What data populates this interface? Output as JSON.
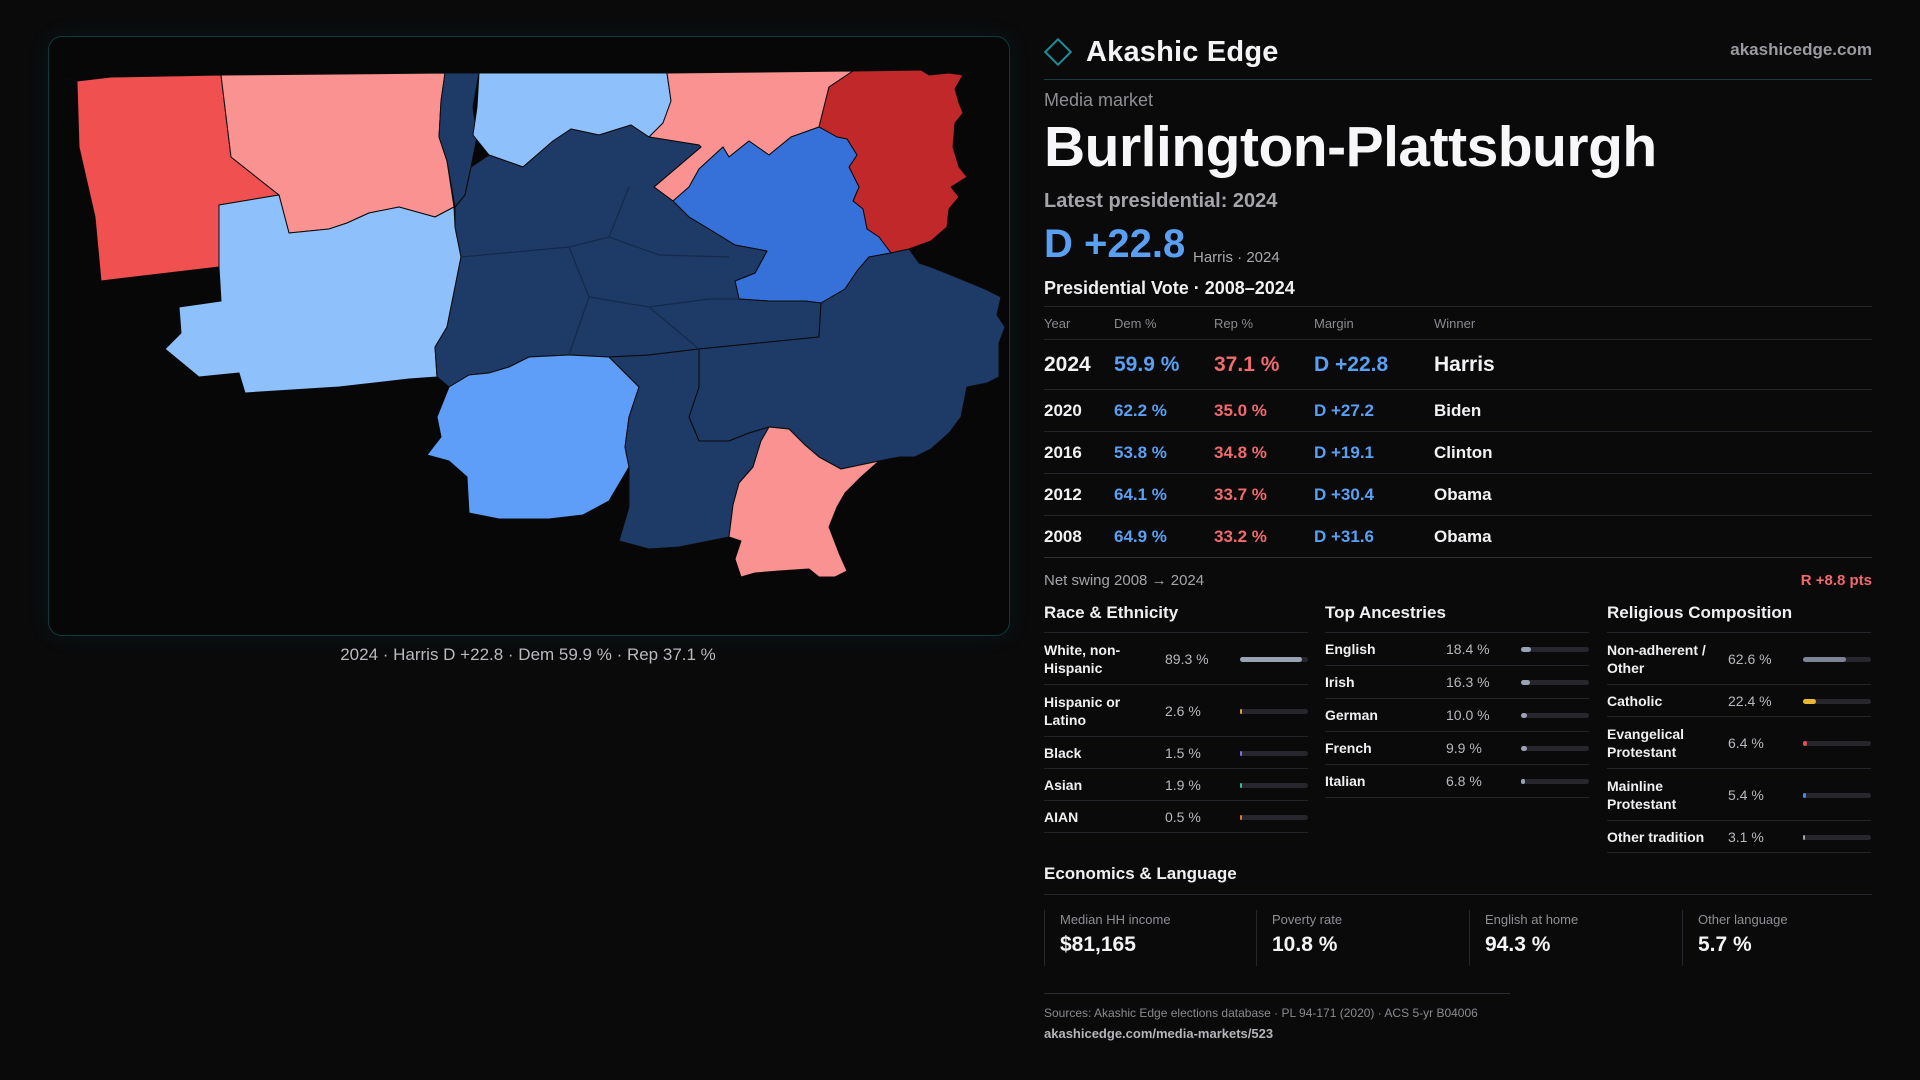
{
  "map": {
    "caption": "2024 · Harris D +22.8 · Dem 59.9 % · Rep 37.1 %",
    "colors": {
      "safe_r": "#f05050",
      "lean_r": "#f99290",
      "strong_r": "#c0282a",
      "lean_d": "#8ec1fb",
      "likely_d": "#5e9ef8",
      "d_mid": "#3571d8",
      "safe_d": "#1e3a66"
    }
  },
  "brand": {
    "name": "Akashic Edge",
    "site": "akashicedge.com"
  },
  "header": {
    "kicker": "Media market",
    "title": "Burlington-Plattsburgh",
    "latest": "Latest presidential: 2024",
    "margin": "D +22.8",
    "margin_sub": "Harris · 2024"
  },
  "votes": {
    "title": "Presidential Vote · 2008–2024",
    "columns": [
      "Year",
      "Dem %",
      "Rep %",
      "Margin",
      "Winner"
    ],
    "rows": [
      {
        "year": "2024",
        "dem": "59.9 %",
        "rep": "37.1 %",
        "margin": "D +22.8",
        "winner": "Harris"
      },
      {
        "year": "2020",
        "dem": "62.2 %",
        "rep": "35.0 %",
        "margin": "D +27.2",
        "winner": "Biden"
      },
      {
        "year": "2016",
        "dem": "53.8 %",
        "rep": "34.8 %",
        "margin": "D +19.1",
        "winner": "Clinton"
      },
      {
        "year": "2012",
        "dem": "64.1 %",
        "rep": "33.7 %",
        "margin": "D +30.4",
        "winner": "Obama"
      },
      {
        "year": "2008",
        "dem": "64.9 %",
        "rep": "33.2 %",
        "margin": "D +31.6",
        "winner": "Obama"
      }
    ],
    "swing_label": "Net swing 2008 → 2024",
    "swing_value": "R +8.8 pts"
  },
  "race": {
    "title": "Race & Ethnicity",
    "items": [
      {
        "label": "White, non-Hispanic",
        "value": "89.3 %",
        "level": 0.893,
        "color": "#9aa3b4"
      },
      {
        "label": "Hispanic or Latino",
        "value": "2.6 %",
        "level": 0.026,
        "color": "#e0a030"
      },
      {
        "label": "Black",
        "value": "1.5 %",
        "level": 0.015,
        "color": "#8a6cd8"
      },
      {
        "label": "Asian",
        "value": "1.9 %",
        "level": 0.019,
        "color": "#2fc0a0"
      },
      {
        "label": "AIAN",
        "value": "0.5 %",
        "level": 0.005,
        "color": "#e07a3a"
      }
    ]
  },
  "ancestry": {
    "title": "Top Ancestries",
    "items": [
      {
        "label": "English",
        "value": "18.4 %",
        "level": 0.184,
        "color": "#9aa3b4"
      },
      {
        "label": "Irish",
        "value": "16.3 %",
        "level": 0.163,
        "color": "#9aa3b4"
      },
      {
        "label": "German",
        "value": "10.0 %",
        "level": 0.1,
        "color": "#9aa3b4"
      },
      {
        "label": "French",
        "value": "9.9 %",
        "level": 0.099,
        "color": "#9aa3b4"
      },
      {
        "label": "Italian",
        "value": "6.8 %",
        "level": 0.068,
        "color": "#9aa3b4"
      }
    ]
  },
  "religion": {
    "title": "Religious Composition",
    "items": [
      {
        "label": "Non-adherent / Other",
        "value": "62.6 %",
        "level": 0.626,
        "color": "#7d8496"
      },
      {
        "label": "Catholic",
        "value": "22.4 %",
        "level": 0.224,
        "color": "#e8b830"
      },
      {
        "label": "Evangelical Protestant",
        "value": "6.4 %",
        "level": 0.064,
        "color": "#e05050"
      },
      {
        "label": "Mainline Protestant",
        "value": "5.4 %",
        "level": 0.054,
        "color": "#4a88e0"
      },
      {
        "label": "Other tradition",
        "value": "3.1 %",
        "level": 0.031,
        "color": "#a0a0a8"
      }
    ]
  },
  "economics": {
    "title": "Economics & Language",
    "cards": [
      {
        "label": "Median HH income",
        "value": "$81,165"
      },
      {
        "label": "Poverty rate",
        "value": "10.8 %"
      },
      {
        "label": "English at home",
        "value": "94.3 %"
      },
      {
        "label": "Other language",
        "value": "5.7 %"
      }
    ]
  },
  "footer": {
    "sources": "Sources: Akashic Edge elections database · PL 94-171 (2020) · ACS 5-yr B04006",
    "url": "akashicedge.com/media-markets/523"
  }
}
